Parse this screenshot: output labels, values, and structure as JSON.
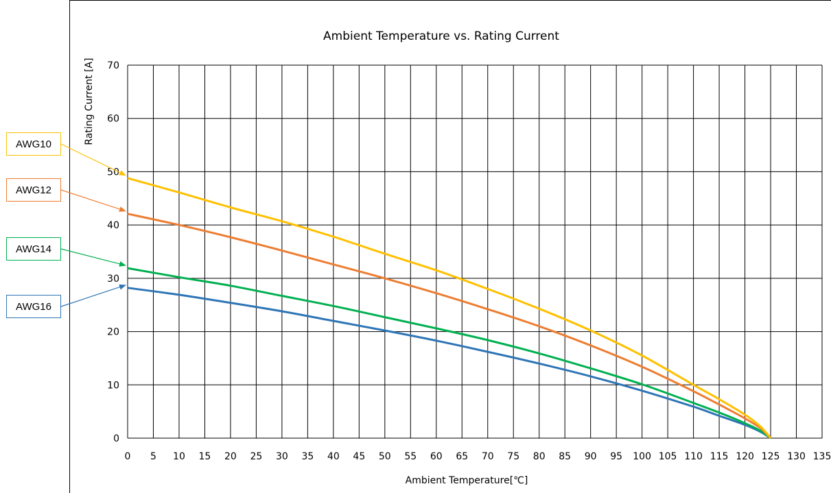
{
  "chart_data": {
    "type": "line",
    "title": "Ambient Temperature vs. Rating Current",
    "xlabel": "Ambient Temperature[℃]",
    "ylabel": "Rating Current [A]",
    "xlim": [
      0,
      135
    ],
    "ylim": [
      0,
      70
    ],
    "x_ticks": [
      0,
      5,
      10,
      15,
      20,
      25,
      30,
      35,
      40,
      45,
      50,
      55,
      60,
      65,
      70,
      75,
      80,
      85,
      90,
      95,
      100,
      105,
      110,
      115,
      120,
      125,
      130,
      135
    ],
    "y_ticks": [
      0,
      10,
      20,
      30,
      40,
      50,
      60,
      70
    ],
    "grid": true,
    "x": [
      0,
      10,
      20,
      30,
      40,
      50,
      60,
      70,
      80,
      90,
      100,
      110,
      115,
      120,
      123,
      125
    ],
    "series": [
      {
        "name": "AWG10",
        "color": "#FFC000",
        "values": [
          48.8,
          46.1,
          43.3,
          40.7,
          37.8,
          34.6,
          31.5,
          28.0,
          24.3,
          20.2,
          15.5,
          10.0,
          7.3,
          4.4,
          2.2,
          0.0
        ]
      },
      {
        "name": "AWG12",
        "color": "#ED7D31",
        "values": [
          42.1,
          40.0,
          37.7,
          35.2,
          32.6,
          30.0,
          27.2,
          24.2,
          21.0,
          17.4,
          13.4,
          8.8,
          6.3,
          3.7,
          1.9,
          0.0
        ]
      },
      {
        "name": "AWG14",
        "color": "#00B050",
        "values": [
          31.9,
          30.2,
          28.6,
          26.7,
          24.8,
          22.7,
          20.6,
          18.4,
          15.9,
          13.1,
          10.1,
          6.6,
          4.8,
          2.8,
          1.4,
          0.0
        ]
      },
      {
        "name": "AWG16",
        "color": "#2E75B6",
        "values": [
          28.2,
          26.9,
          25.4,
          23.8,
          22.0,
          20.2,
          18.3,
          16.2,
          14.0,
          11.6,
          8.9,
          5.9,
          4.2,
          2.5,
          1.2,
          0.0
        ]
      }
    ]
  }
}
